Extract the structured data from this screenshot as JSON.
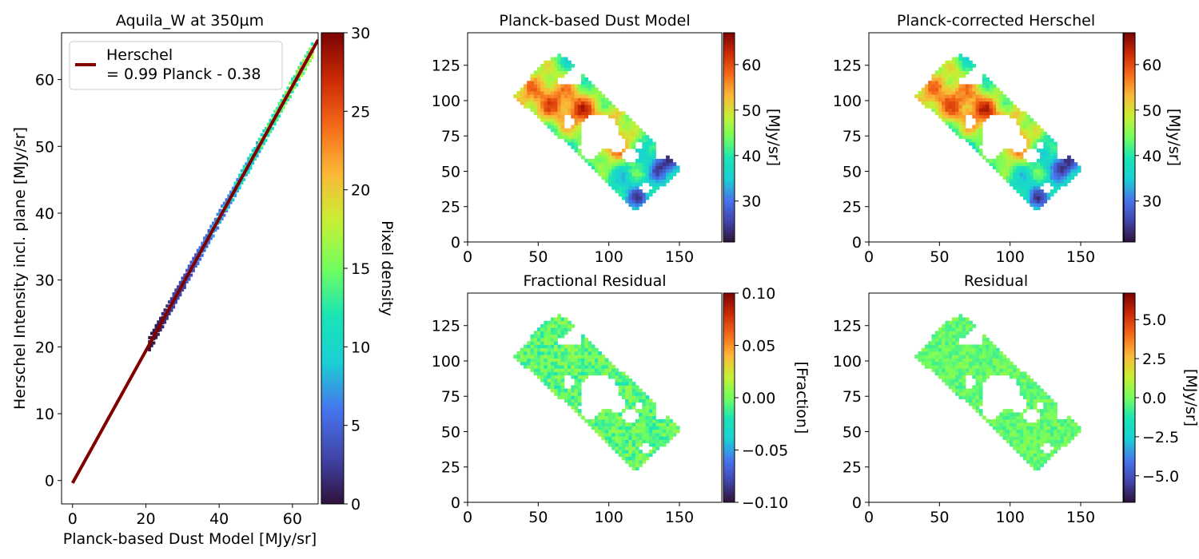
{
  "chart_data": [
    {
      "type": "heatmap",
      "title": "Aquila_W at 350µm",
      "xlabel": "Planck-based Dust Model [MJy/sr]",
      "ylabel": "Herschel Intensity incl. plane [MJy/sr]",
      "xlim": [
        -3,
        67
      ],
      "ylim": [
        -3.5,
        67
      ],
      "xticks": [
        0,
        20,
        40,
        60
      ],
      "yticks": [
        0,
        10,
        20,
        30,
        40,
        50,
        60
      ],
      "fit_x": [
        0,
        67
      ],
      "legend": {
        "line1": "Herschel",
        "line2": "= 0.99 Planck - 0.38",
        "placement": "top-left",
        "color": "#800000"
      },
      "fit": {
        "slope": 0.99,
        "intercept": -0.38
      },
      "points_x_range": [
        21,
        66
      ],
      "colorbar": {
        "label": "Pixel density",
        "range": [
          0,
          30
        ],
        "ticks": [
          0,
          5,
          10,
          15,
          20,
          25,
          30
        ],
        "cmap": "turbo"
      }
    },
    {
      "type": "heatmap",
      "title": "Planck-based Dust Model",
      "xlim": [
        0,
        180
      ],
      "ylim": [
        0,
        148
      ],
      "xticks": [
        0,
        50,
        100,
        150
      ],
      "yticks": [
        0,
        25,
        50,
        75,
        100,
        125
      ],
      "colorbar": {
        "label": "[MJy/sr]",
        "range": [
          21,
          67
        ],
        "ticks": [
          30,
          40,
          50,
          60
        ],
        "cmap": "turbo"
      }
    },
    {
      "type": "heatmap",
      "title": "Planck-corrected Herschel",
      "xlim": [
        0,
        180
      ],
      "ylim": [
        0,
        148
      ],
      "xticks": [
        0,
        50,
        100,
        150
      ],
      "yticks": [
        0,
        25,
        50,
        75,
        100,
        125
      ],
      "colorbar": {
        "label": "[MJy/sr]",
        "range": [
          21,
          67
        ],
        "ticks": [
          30,
          40,
          50,
          60
        ],
        "cmap": "turbo"
      }
    },
    {
      "type": "heatmap",
      "title": "Fractional Residual",
      "xlim": [
        0,
        180
      ],
      "ylim": [
        0,
        148
      ],
      "xticks": [
        0,
        50,
        100,
        150
      ],
      "yticks": [
        0,
        25,
        50,
        75,
        100,
        125
      ],
      "colorbar": {
        "label": "[Fraction]",
        "range": [
          -0.1,
          0.1
        ],
        "ticks": [
          -0.1,
          -0.05,
          0,
          0.05,
          0.1
        ],
        "tick_labels": [
          "−0.10",
          "−0.05",
          "0.00",
          "0.05",
          "0.10"
        ],
        "cmap": "turbo"
      }
    },
    {
      "type": "heatmap",
      "title": "Residual",
      "xlim": [
        0,
        180
      ],
      "ylim": [
        0,
        148
      ],
      "xticks": [
        0,
        50,
        100,
        150
      ],
      "yticks": [
        0,
        25,
        50,
        75,
        100,
        125
      ],
      "colorbar": {
        "label": "[MJy/sr]",
        "range": [
          -6.7,
          6.7
        ],
        "ticks": [
          -5,
          -2.5,
          0,
          2.5,
          5
        ],
        "tick_labels": [
          "−5.0",
          "−2.5",
          "0.0",
          "2.5",
          "5.0"
        ],
        "cmap": "turbo"
      }
    }
  ],
  "region_polygon": [
    [
      33,
      103
    ],
    [
      54,
      128
    ],
    [
      66,
      133
    ],
    [
      117,
      85
    ],
    [
      151,
      51
    ],
    [
      118,
      22
    ],
    [
      84,
      57
    ],
    [
      33,
      103
    ]
  ]
}
